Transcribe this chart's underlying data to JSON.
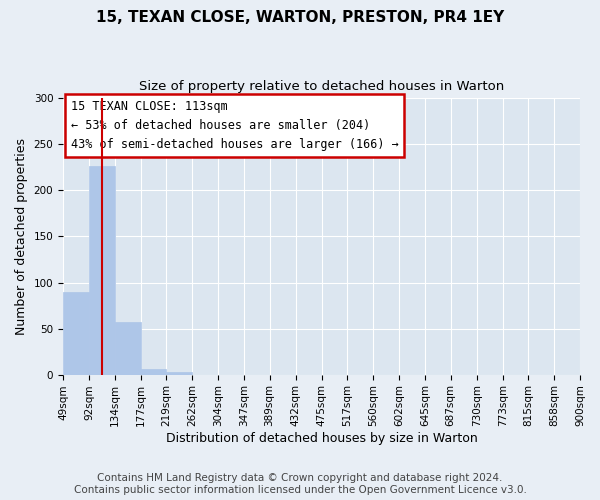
{
  "title": "15, TEXAN CLOSE, WARTON, PRESTON, PR4 1EY",
  "subtitle": "Size of property relative to detached houses in Warton",
  "xlabel": "Distribution of detached houses by size in Warton",
  "ylabel": "Number of detached properties",
  "footer_line1": "Contains HM Land Registry data © Crown copyright and database right 2024.",
  "footer_line2": "Contains public sector information licensed under the Open Government Licence v3.0.",
  "bar_edges": [
    49,
    92,
    134,
    177,
    219,
    262,
    304,
    347,
    389,
    432,
    475,
    517,
    560,
    602,
    645,
    687,
    730,
    773,
    815,
    858,
    900
  ],
  "bar_heights": [
    90,
    226,
    57,
    6,
    3,
    0,
    0,
    0,
    0,
    0,
    0,
    0,
    0,
    0,
    0,
    0,
    0,
    0,
    0,
    0
  ],
  "bar_color": "#aec6e8",
  "bar_edgecolor": "#aec6e8",
  "vline_x": 113,
  "vline_color": "#cc0000",
  "annotation_line1": "15 TEXAN CLOSE: 113sqm",
  "annotation_line2": "← 53% of detached houses are smaller (204)",
  "annotation_line3": "43% of semi-detached houses are larger (166) →",
  "annotation_box_edgecolor": "#cc0000",
  "annotation_box_facecolor": "#ffffff",
  "ylim": [
    0,
    300
  ],
  "yticks": [
    0,
    50,
    100,
    150,
    200,
    250,
    300
  ],
  "bg_color": "#e8eef5",
  "plot_bg_color": "#dce6f0",
  "grid_color": "#ffffff",
  "title_fontsize": 11,
  "subtitle_fontsize": 9.5,
  "axis_label_fontsize": 9,
  "tick_fontsize": 7.5,
  "annotation_fontsize": 8.5,
  "footer_fontsize": 7.5
}
